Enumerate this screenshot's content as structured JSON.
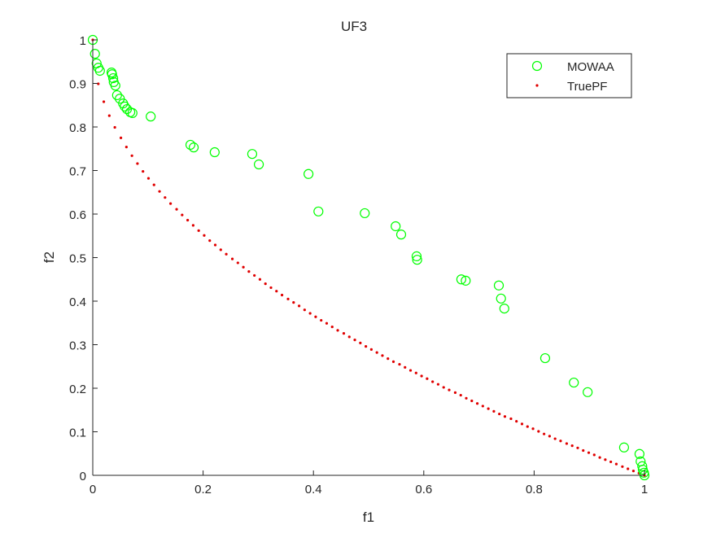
{
  "chart_data": {
    "type": "scatter",
    "title": "UF3",
    "xlabel": "f1",
    "ylabel": "f2",
    "xlim": [
      0,
      1
    ],
    "ylim": [
      0,
      1
    ],
    "xticks": [
      "0",
      "0.2",
      "0.4",
      "0.6",
      "0.8",
      "1"
    ],
    "xtick_values": [
      0,
      0.2,
      0.4,
      0.6,
      0.8,
      1
    ],
    "yticks": [
      "0",
      "0.1",
      "0.2",
      "0.3",
      "0.4",
      "0.5",
      "0.6",
      "0.7",
      "0.8",
      "0.9",
      "1"
    ],
    "ytick_values": [
      0,
      0.1,
      0.2,
      0.3,
      0.4,
      0.5,
      0.6,
      0.7,
      0.8,
      0.9,
      1
    ],
    "grid": false,
    "legend_position": "top-right",
    "series": [
      {
        "name": "MOWAA",
        "marker": "open-circle",
        "color": "#00ff00",
        "x": [
          0,
          0.004,
          0.007,
          0.01,
          0.013,
          0.034,
          0.035,
          0.037,
          0.038,
          0.041,
          0.044,
          0.049,
          0.055,
          0.058,
          0.062,
          0.068,
          0.072,
          0.105,
          0.177,
          0.183,
          0.221,
          0.289,
          0.301,
          0.391,
          0.409,
          0.493,
          0.549,
          0.559,
          0.587,
          0.588,
          0.668,
          0.676,
          0.736,
          0.74,
          0.746,
          0.82,
          0.872,
          0.897,
          0.963,
          0.991,
          0.993,
          0.996,
          0.997,
          0.999,
          1.0
        ],
        "y": [
          1.0,
          0.968,
          0.946,
          0.936,
          0.929,
          0.925,
          0.921,
          0.912,
          0.903,
          0.895,
          0.873,
          0.865,
          0.854,
          0.847,
          0.841,
          0.834,
          0.832,
          0.824,
          0.759,
          0.753,
          0.742,
          0.738,
          0.714,
          0.692,
          0.606,
          0.602,
          0.572,
          0.553,
          0.503,
          0.495,
          0.45,
          0.447,
          0.436,
          0.406,
          0.383,
          0.269,
          0.213,
          0.191,
          0.064,
          0.049,
          0.032,
          0.021,
          0.013,
          0.006,
          0.0
        ]
      },
      {
        "name": "TruePF",
        "marker": "dot",
        "color": "#e00000",
        "x": [
          0,
          0.01,
          0.02,
          0.03,
          0.04,
          0.051,
          0.061,
          0.071,
          0.081,
          0.091,
          0.101,
          0.111,
          0.121,
          0.131,
          0.141,
          0.152,
          0.162,
          0.172,
          0.182,
          0.192,
          0.202,
          0.212,
          0.222,
          0.232,
          0.242,
          0.253,
          0.263,
          0.273,
          0.283,
          0.293,
          0.303,
          0.313,
          0.323,
          0.333,
          0.343,
          0.354,
          0.364,
          0.374,
          0.384,
          0.394,
          0.404,
          0.414,
          0.424,
          0.434,
          0.444,
          0.455,
          0.465,
          0.475,
          0.485,
          0.495,
          0.505,
          0.515,
          0.525,
          0.535,
          0.545,
          0.556,
          0.566,
          0.576,
          0.586,
          0.596,
          0.606,
          0.616,
          0.626,
          0.636,
          0.646,
          0.657,
          0.667,
          0.677,
          0.687,
          0.697,
          0.707,
          0.717,
          0.727,
          0.737,
          0.747,
          0.758,
          0.768,
          0.778,
          0.788,
          0.798,
          0.808,
          0.818,
          0.828,
          0.838,
          0.848,
          0.859,
          0.869,
          0.879,
          0.889,
          0.899,
          0.909,
          0.919,
          0.929,
          0.939,
          0.949,
          0.96,
          0.97,
          0.98,
          0.99,
          1.0
        ],
        "y": [
          1,
          0.899,
          0.858,
          0.826,
          0.799,
          0.775,
          0.754,
          0.734,
          0.716,
          0.698,
          0.682,
          0.667,
          0.652,
          0.638,
          0.624,
          0.611,
          0.598,
          0.586,
          0.574,
          0.562,
          0.551,
          0.539,
          0.529,
          0.518,
          0.508,
          0.497,
          0.488,
          0.478,
          0.468,
          0.459,
          0.45,
          0.44,
          0.431,
          0.423,
          0.414,
          0.405,
          0.397,
          0.389,
          0.38,
          0.372,
          0.364,
          0.356,
          0.349,
          0.341,
          0.333,
          0.326,
          0.318,
          0.311,
          0.304,
          0.296,
          0.289,
          0.282,
          0.275,
          0.268,
          0.261,
          0.255,
          0.248,
          0.241,
          0.235,
          0.228,
          0.222,
          0.215,
          0.209,
          0.202,
          0.196,
          0.19,
          0.184,
          0.177,
          0.171,
          0.165,
          0.159,
          0.153,
          0.147,
          0.141,
          0.135,
          0.13,
          0.124,
          0.118,
          0.112,
          0.107,
          0.101,
          0.095,
          0.09,
          0.084,
          0.079,
          0.073,
          0.068,
          0.063,
          0.057,
          0.052,
          0.047,
          0.041,
          0.036,
          0.031,
          0.026,
          0.02,
          0.015,
          0.01,
          0.005,
          0
        ]
      }
    ]
  }
}
